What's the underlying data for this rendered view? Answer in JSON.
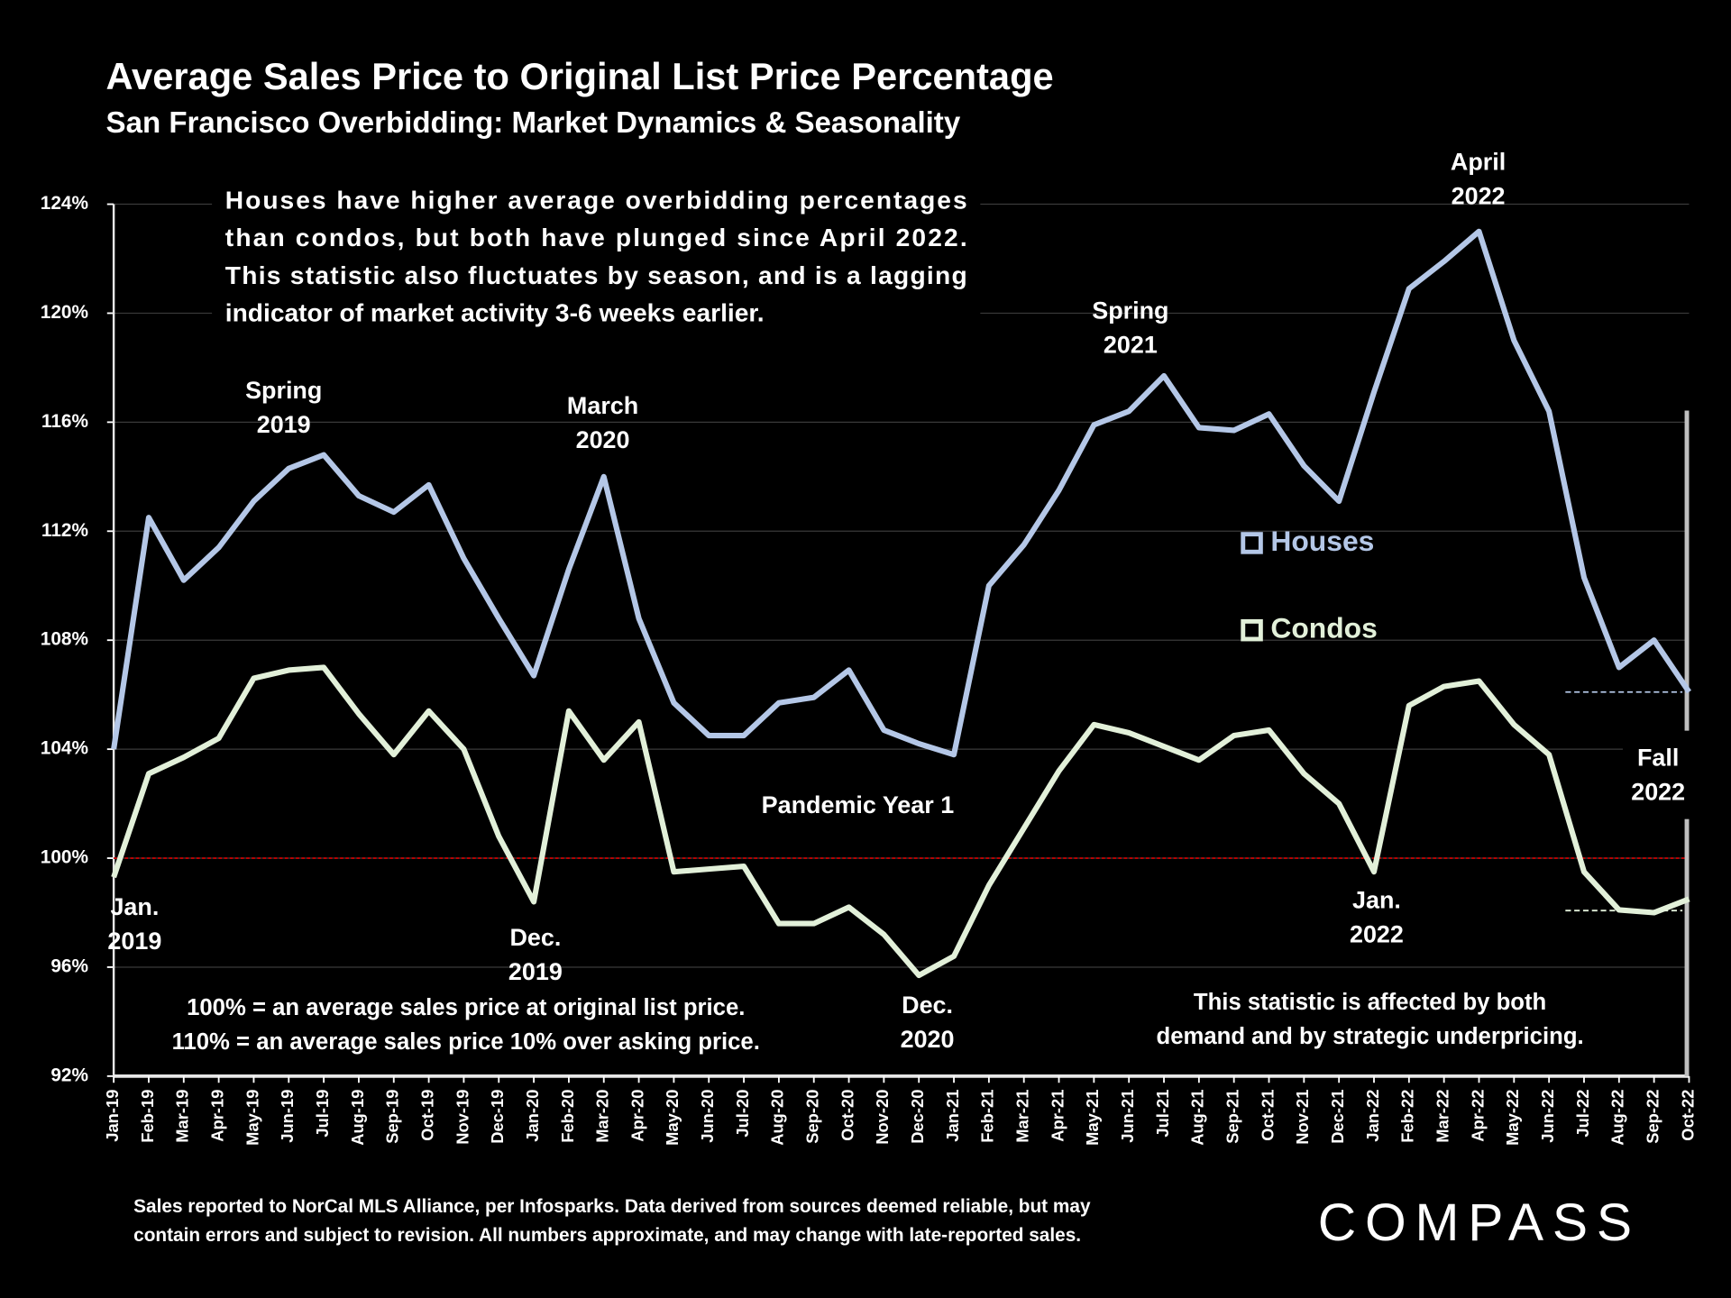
{
  "chart_data": {
    "type": "line",
    "title": "Average Sales Price to Original List Price Percentage",
    "subtitle": "San Francisco Overbidding: Market Dynamics & Seasonality",
    "categories": [
      "Jan-19",
      "Feb-19",
      "Mar-19",
      "Apr-19",
      "May-19",
      "Jun-19",
      "Jul-19",
      "Aug-19",
      "Sep-19",
      "Oct-19",
      "Nov-19",
      "Dec-19",
      "Jan-20",
      "Feb-20",
      "Mar-20",
      "Apr-20",
      "May-20",
      "Jun-20",
      "Jul-20",
      "Aug-20",
      "Sep-20",
      "Oct-20",
      "Nov-20",
      "Dec-20",
      "Jan-21",
      "Feb-21",
      "Mar-21",
      "Apr-21",
      "May-21",
      "Jun-21",
      "Jul-21",
      "Aug-21",
      "Sep-21",
      "Oct-21",
      "Nov-21",
      "Dec-21",
      "Jan-22",
      "Feb-22",
      "Mar-22",
      "Apr-22",
      "May-22",
      "Jun-22",
      "Jul-22",
      "Aug-22",
      "Sep-22",
      "Oct-22"
    ],
    "series": [
      {
        "name": "Houses",
        "color": "#b4c7e7",
        "values": [
          104.0,
          112.5,
          110.2,
          111.4,
          113.1,
          114.3,
          114.8,
          113.3,
          112.7,
          113.7,
          111.0,
          108.8,
          106.7,
          110.6,
          114.0,
          108.8,
          105.7,
          104.5,
          104.5,
          105.7,
          105.9,
          106.9,
          104.7,
          104.2,
          103.8,
          110.0,
          111.5,
          113.5,
          115.9,
          116.4,
          117.7,
          115.8,
          115.7,
          116.3,
          114.4,
          113.1,
          117.1,
          120.9,
          121.9,
          123.0,
          119.0,
          116.4,
          110.3,
          107.0,
          108.0,
          106.1
        ]
      },
      {
        "name": "Condos",
        "color": "#e2f0d9",
        "values": [
          99.3,
          103.1,
          103.7,
          104.4,
          106.6,
          106.9,
          107.0,
          105.3,
          103.8,
          105.4,
          104.0,
          100.8,
          98.4,
          105.4,
          103.6,
          105.0,
          99.5,
          99.6,
          99.7,
          97.6,
          97.6,
          98.2,
          97.2,
          95.7,
          96.4,
          99.0,
          101.1,
          103.2,
          104.9,
          104.6,
          104.1,
          103.6,
          104.5,
          104.7,
          103.1,
          102.0,
          99.5,
          105.6,
          106.3,
          106.5,
          104.9,
          103.8,
          99.5,
          98.1,
          98.0,
          98.5
        ]
      }
    ],
    "ylim": [
      92,
      124
    ],
    "yticks": [
      {
        "value": 92,
        "label": "92%"
      },
      {
        "value": 96,
        "label": "96%"
      },
      {
        "value": 100,
        "label": "100%"
      },
      {
        "value": 104,
        "label": "104%"
      },
      {
        "value": 108,
        "label": "108%"
      },
      {
        "value": 112,
        "label": "112%"
      },
      {
        "value": 116,
        "label": "116%"
      },
      {
        "value": 120,
        "label": "120%"
      },
      {
        "value": 124,
        "label": "124%"
      }
    ],
    "grid": true,
    "reference_line": {
      "value": 100,
      "color": "#c00000"
    },
    "description": [
      "Houses have higher average overbidding percentages",
      "than condos, but both have plunged since April 2022.",
      "This statistic also fluctuates by season, and is a lagging",
      "indicator of market activity 3-6 weeks earlier."
    ],
    "annotations": [
      {
        "lines": [
          "Spring",
          "2019"
        ]
      },
      {
        "lines": [
          "March",
          "2020"
        ]
      },
      {
        "lines": [
          "Spring",
          "2021"
        ]
      },
      {
        "lines": [
          "April",
          "2022"
        ]
      },
      {
        "lines": [
          "Jan.",
          "2019"
        ]
      },
      {
        "lines": [
          "Dec.",
          "2019"
        ]
      },
      {
        "lines": [
          "Dec.",
          "2020"
        ]
      },
      {
        "lines": [
          "Jan.",
          "2022"
        ]
      },
      {
        "lines": [
          "Fall",
          "2022"
        ]
      },
      {
        "lines": [
          "Pandemic Year 1"
        ]
      }
    ],
    "notes_left": [
      "100% = an average sales price at original list price.",
      "110% = an average sales price 10% over asking price."
    ],
    "notes_right": [
      "This statistic is affected by both",
      "demand and by strategic underpricing."
    ],
    "footer": [
      "Sales reported to NorCal MLS Alliance, per Infosparks. Data derived from sources deemed reliable, but may",
      "contain errors and subject to revision. All numbers approximate, and may change with late-reported sales."
    ],
    "logo": "COMPASS"
  }
}
